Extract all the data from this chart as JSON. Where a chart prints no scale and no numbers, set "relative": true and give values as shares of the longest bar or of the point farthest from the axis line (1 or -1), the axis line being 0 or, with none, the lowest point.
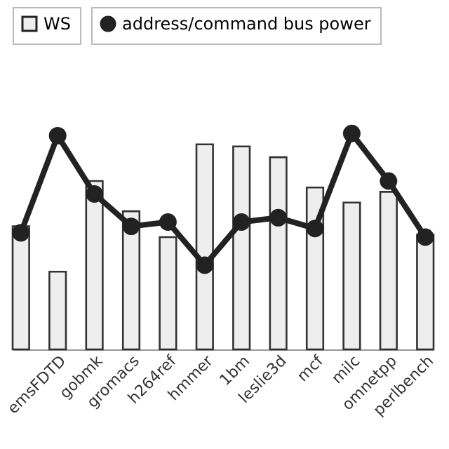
{
  "chart_data": {
    "type": "bar",
    "relative": true,
    "categories": [
      null,
      "emsFDTD",
      "gobmk",
      "gromacs",
      "h264ref",
      "hmmer",
      "1bm",
      "leslie3d",
      "mcf",
      "milc",
      "omnetpp",
      "perlbench"
    ],
    "series": [
      {
        "name": "WS",
        "color": "#eeeeee",
        "values": [
          0.57,
          0.36,
          0.78,
          0.64,
          0.52,
          0.95,
          0.94,
          0.89,
          0.75,
          0.68,
          0.73,
          0.53
        ]
      },
      {
        "name": "address/command bus power",
        "type": "line",
        "color": "#222222",
        "values": [
          0.54,
          0.99,
          0.72,
          0.57,
          0.59,
          0.39,
          0.59,
          0.61,
          0.56,
          1.0,
          0.78,
          0.52
        ]
      }
    ],
    "legend": "top",
    "marker": "circle",
    "line_style": "solid"
  }
}
